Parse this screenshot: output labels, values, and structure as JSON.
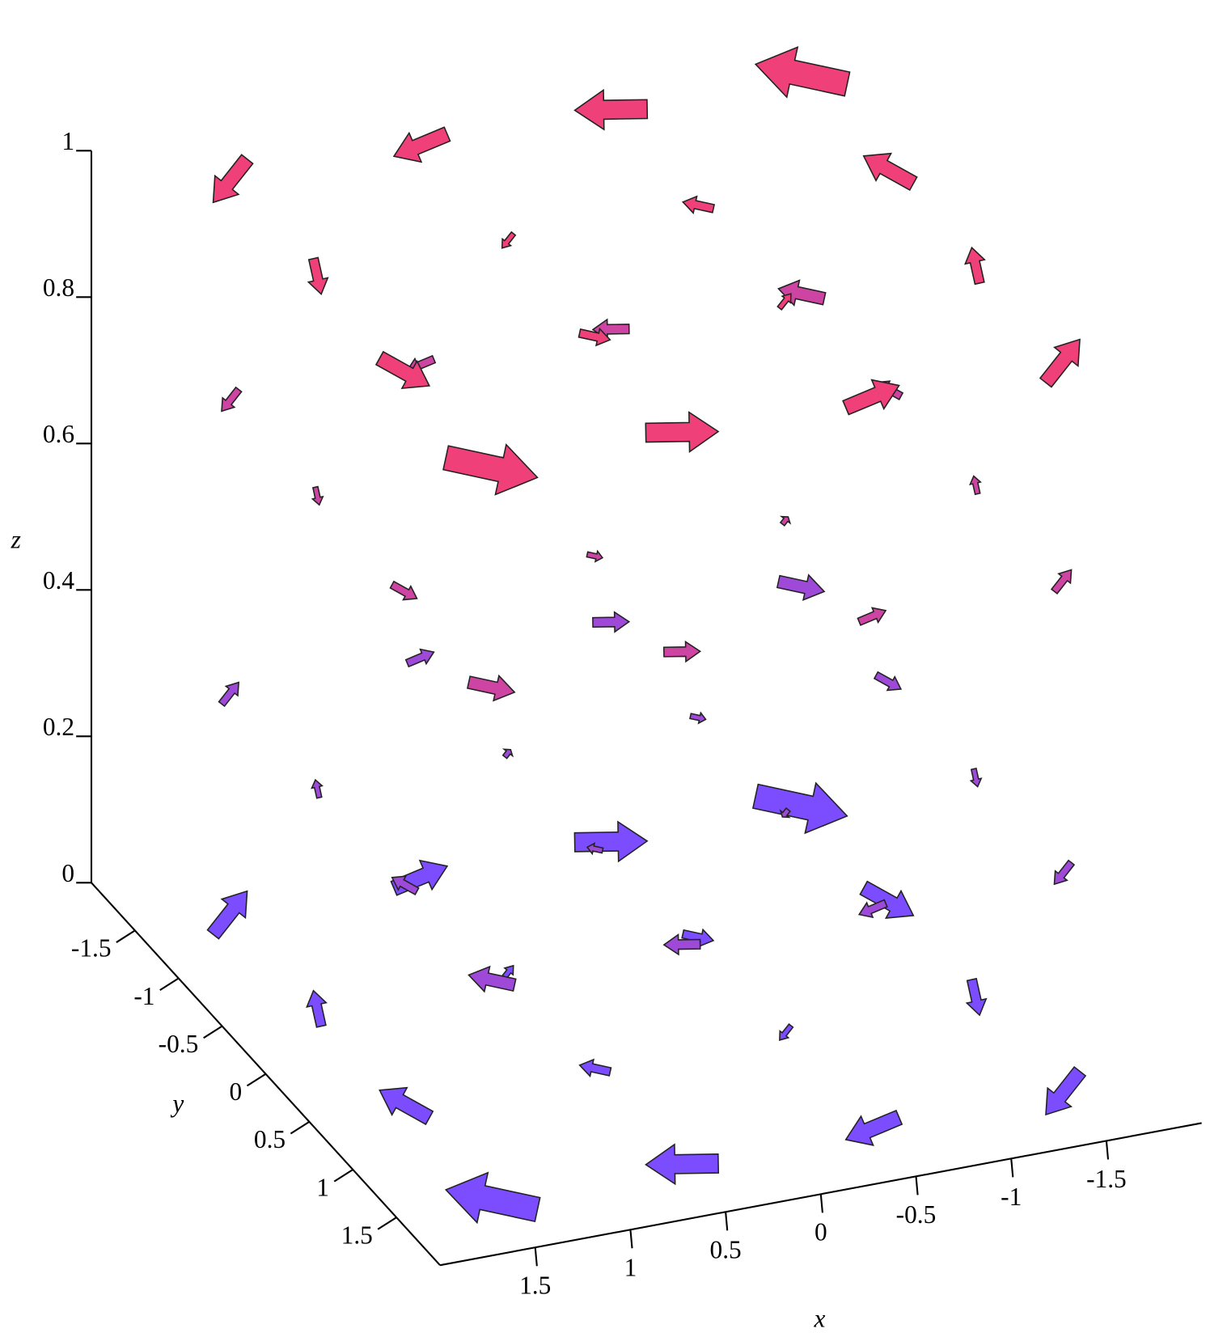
{
  "chart_data": {
    "type": "vector-field-3d",
    "xlabel": "x",
    "ylabel": "y",
    "zlabel": "z",
    "xlim": [
      -2,
      2
    ],
    "ylim": [
      -2,
      2
    ],
    "zlim": [
      0,
      1
    ],
    "xticks": [
      -1.5,
      -1,
      -0.5,
      0,
      0.5,
      1,
      1.5
    ],
    "yticks": [
      -1.5,
      -1,
      -0.5,
      0,
      0.5,
      1,
      1.5
    ],
    "zticks": [
      0,
      0.2,
      0.4,
      0.6,
      0.8,
      1
    ],
    "colors": [
      "#7b4dff",
      "#f0407a"
    ],
    "arrows": [
      [
        -1.5,
        -1.5,
        0,
        -1.5,
        1.5,
        0
      ],
      [
        -1.5,
        -0.5,
        0,
        -0.5,
        1.5,
        0
      ],
      [
        -1.5,
        0.5,
        0,
        0.5,
        1.5,
        0
      ],
      [
        -1.5,
        1.5,
        0,
        1.5,
        1.5,
        0
      ],
      [
        -0.5,
        -1.5,
        0,
        -1.5,
        0.5,
        0
      ],
      [
        -0.5,
        -0.5,
        0,
        -0.5,
        0.5,
        0
      ],
      [
        -0.5,
        0.5,
        0,
        0.5,
        0.5,
        0
      ],
      [
        -0.5,
        1.5,
        0,
        1.5,
        0.5,
        0
      ],
      [
        0.5,
        -1.5,
        0,
        -1.5,
        -0.5,
        0
      ],
      [
        0.5,
        -0.5,
        0,
        -0.5,
        -0.5,
        0
      ],
      [
        0.5,
        0.5,
        0,
        0.5,
        -0.5,
        0
      ],
      [
        0.5,
        1.5,
        0,
        1.5,
        -0.5,
        0
      ],
      [
        1.5,
        -1.5,
        0,
        -1.5,
        -1.5,
        0
      ],
      [
        1.5,
        -0.5,
        0,
        -0.5,
        -1.5,
        0
      ],
      [
        1.5,
        0.5,
        0,
        0.5,
        -1.5,
        0
      ],
      [
        1.5,
        1.5,
        0,
        1.5,
        -1.5,
        0
      ],
      [
        -1.5,
        -1.5,
        0.3,
        -0.75,
        0.75,
        0
      ],
      [
        -1.5,
        -0.5,
        0.3,
        -0.25,
        0.75,
        0
      ],
      [
        -1.5,
        0.5,
        0.3,
        0.25,
        0.75,
        0
      ],
      [
        -1.5,
        1.5,
        0.3,
        0.75,
        0.75,
        0
      ],
      [
        -0.5,
        -1.5,
        0.3,
        -0.75,
        0.25,
        0
      ],
      [
        -0.5,
        -0.5,
        0.3,
        -0.25,
        0.25,
        0
      ],
      [
        -0.5,
        0.5,
        0.3,
        0.25,
        0.25,
        0
      ],
      [
        -0.5,
        1.5,
        0.3,
        0.75,
        0.25,
        0
      ],
      [
        0.5,
        -1.5,
        0.3,
        -0.75,
        -0.25,
        0
      ],
      [
        0.5,
        -0.5,
        0.3,
        -0.25,
        -0.25,
        0
      ],
      [
        0.5,
        0.5,
        0.3,
        0.25,
        -0.25,
        0
      ],
      [
        0.5,
        1.5,
        0.3,
        0.75,
        -0.25,
        0
      ],
      [
        1.5,
        -1.5,
        0.3,
        -0.75,
        -0.75,
        0
      ],
      [
        1.5,
        -0.5,
        0.3,
        -0.25,
        -0.75,
        0
      ],
      [
        1.5,
        0.5,
        0.3,
        0.25,
        -0.75,
        0
      ],
      [
        1.5,
        1.5,
        0.3,
        0.75,
        -0.75,
        0
      ],
      [
        -1.5,
        -1.5,
        0.7,
        0.75,
        -0.75,
        0
      ],
      [
        -1.5,
        -0.5,
        0.7,
        0.25,
        -0.75,
        0
      ],
      [
        -1.5,
        0.5,
        0.7,
        -0.25,
        -0.75,
        0
      ],
      [
        -1.5,
        1.5,
        0.7,
        -0.75,
        -0.75,
        0
      ],
      [
        -0.5,
        -1.5,
        0.7,
        0.75,
        -0.25,
        0
      ],
      [
        -0.5,
        -0.5,
        0.7,
        0.25,
        -0.25,
        0
      ],
      [
        -0.5,
        0.5,
        0.7,
        -0.25,
        -0.25,
        0
      ],
      [
        -0.5,
        1.5,
        0.7,
        -0.75,
        -0.25,
        0
      ],
      [
        0.5,
        -1.5,
        0.7,
        0.75,
        0.25,
        0
      ],
      [
        0.5,
        -0.5,
        0.7,
        0.25,
        0.25,
        0
      ],
      [
        0.5,
        0.5,
        0.7,
        -0.25,
        0.25,
        0
      ],
      [
        0.5,
        1.5,
        0.7,
        -0.75,
        0.25,
        0
      ],
      [
        1.5,
        -1.5,
        0.7,
        0.75,
        0.75,
        0
      ],
      [
        1.5,
        -0.5,
        0.7,
        0.25,
        0.75,
        0
      ],
      [
        1.5,
        0.5,
        0.7,
        -0.25,
        0.75,
        0
      ],
      [
        1.5,
        1.5,
        0.7,
        -0.75,
        0.75,
        0
      ],
      [
        -1.5,
        -1.5,
        1,
        1.5,
        -1.5,
        0
      ],
      [
        -1.5,
        -0.5,
        1,
        0.5,
        -1.5,
        0
      ],
      [
        -1.5,
        0.5,
        1,
        -0.5,
        -1.5,
        0
      ],
      [
        -1.5,
        1.5,
        1,
        -1.5,
        -1.5,
        0
      ],
      [
        -0.5,
        -1.5,
        1,
        1.5,
        -0.5,
        0
      ],
      [
        -0.5,
        -0.5,
        1,
        0.5,
        -0.5,
        0
      ],
      [
        -0.5,
        0.5,
        1,
        -0.5,
        -0.5,
        0
      ],
      [
        -0.5,
        1.5,
        1,
        -1.5,
        -0.5,
        0
      ],
      [
        0.5,
        -1.5,
        1,
        1.5,
        0.5,
        0
      ],
      [
        0.5,
        -0.5,
        1,
        0.5,
        0.5,
        0
      ],
      [
        0.5,
        0.5,
        1,
        -0.5,
        0.5,
        0
      ],
      [
        0.5,
        1.5,
        1,
        -1.5,
        0.5,
        0
      ],
      [
        1.5,
        -1.5,
        1,
        1.5,
        1.5,
        0
      ],
      [
        1.5,
        -0.5,
        1,
        0.5,
        1.5,
        0
      ],
      [
        1.5,
        0.5,
        1,
        -0.5,
        1.5,
        0
      ],
      [
        1.5,
        1.5,
        1,
        -1.5,
        1.5,
        0
      ]
    ]
  }
}
